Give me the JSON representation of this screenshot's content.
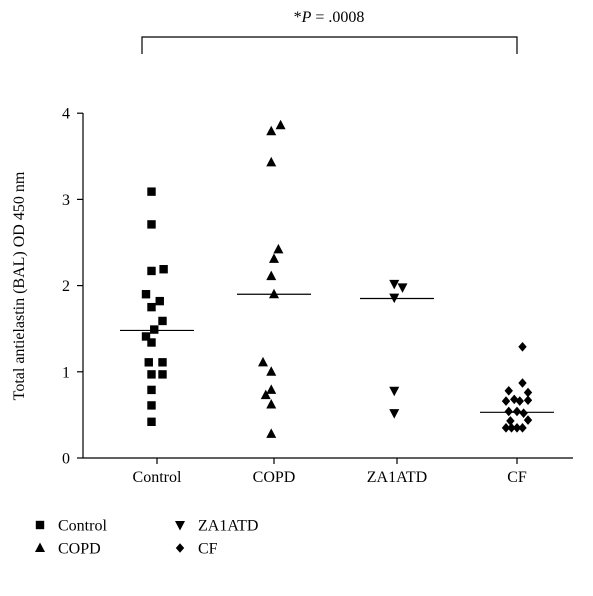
{
  "chart_data": {
    "type": "scatter",
    "title": "",
    "xlabel": "",
    "ylabel": "Total antielastin (BAL) OD 450 nm",
    "ylim": [
      0,
      4
    ],
    "yticks": [
      "0",
      "1",
      "2",
      "3",
      "4"
    ],
    "categories": [
      "Control",
      "COPD",
      "ZA1ATD",
      "CF"
    ],
    "significance": {
      "prefix": "*",
      "p_symbol": "P",
      "text": " = .0008",
      "from": "Control",
      "to": "CF"
    },
    "grid": false,
    "legend_position": "bottom-left",
    "series": [
      {
        "name": "Control",
        "marker": "square",
        "median": 1.48,
        "points": [
          [
            -0.1,
            3.09
          ],
          [
            -0.1,
            2.71
          ],
          [
            -0.1,
            2.17
          ],
          [
            0.12,
            2.19
          ],
          [
            -0.2,
            1.9
          ],
          [
            0.05,
            1.82
          ],
          [
            -0.1,
            1.75
          ],
          [
            0.1,
            1.59
          ],
          [
            -0.2,
            1.41
          ],
          [
            -0.05,
            1.49
          ],
          [
            -0.1,
            1.34
          ],
          [
            -0.15,
            1.11
          ],
          [
            0.1,
            1.11
          ],
          [
            -0.1,
            0.97
          ],
          [
            0.1,
            0.97
          ],
          [
            -0.1,
            0.79
          ],
          [
            -0.1,
            0.61
          ],
          [
            -0.1,
            0.42
          ]
        ]
      },
      {
        "name": "COPD",
        "marker": "triangle-up",
        "median": 1.9,
        "points": [
          [
            -0.05,
            3.79
          ],
          [
            0.12,
            3.86
          ],
          [
            -0.05,
            3.43
          ],
          [
            0.08,
            2.42
          ],
          [
            0.0,
            2.31
          ],
          [
            -0.05,
            2.11
          ],
          [
            0.0,
            1.9
          ],
          [
            -0.2,
            1.11
          ],
          [
            -0.05,
            1.0
          ],
          [
            -0.15,
            0.73
          ],
          [
            -0.05,
            0.79
          ],
          [
            -0.05,
            0.62
          ],
          [
            -0.05,
            0.28
          ]
        ]
      },
      {
        "name": "ZA1ATD",
        "marker": "triangle-down",
        "median": 1.85,
        "points": [
          [
            -0.05,
            2.02
          ],
          [
            0.1,
            1.98
          ],
          [
            -0.05,
            1.86
          ],
          [
            -0.05,
            0.78
          ],
          [
            -0.05,
            0.52
          ]
        ]
      },
      {
        "name": "CF",
        "marker": "diamond",
        "median": 0.53,
        "points": [
          [
            0.1,
            1.29
          ],
          [
            -0.15,
            0.78
          ],
          [
            0.1,
            0.87
          ],
          [
            0.2,
            0.76
          ],
          [
            -0.2,
            0.66
          ],
          [
            -0.05,
            0.68
          ],
          [
            0.05,
            0.66
          ],
          [
            0.2,
            0.67
          ],
          [
            -0.15,
            0.54
          ],
          [
            0.0,
            0.54
          ],
          [
            0.12,
            0.52
          ],
          [
            -0.12,
            0.43
          ],
          [
            0.2,
            0.44
          ],
          [
            -0.2,
            0.35
          ],
          [
            -0.1,
            0.35
          ],
          [
            0.0,
            0.35
          ],
          [
            0.1,
            0.35
          ]
        ]
      }
    ]
  }
}
